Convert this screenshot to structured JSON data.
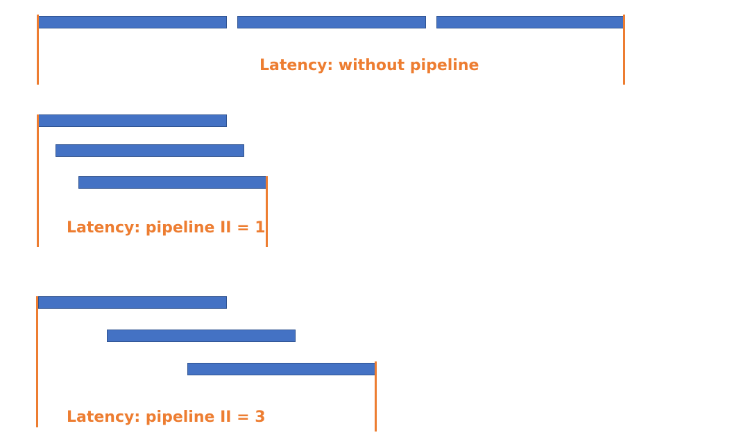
{
  "colors": {
    "bar_fill": "#4472c4",
    "bar_border": "#2f528f",
    "marker": "#ed7d31",
    "caption": "#ed7d31"
  },
  "sections": [
    {
      "caption": "Latency: without pipeline"
    },
    {
      "caption": "Latency: pipeline II = 1"
    },
    {
      "caption": "Latency: pipeline II = 3"
    }
  ]
}
